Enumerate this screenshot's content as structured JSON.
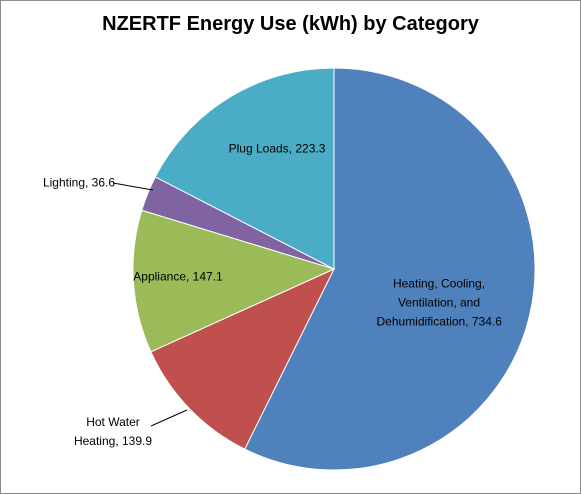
{
  "chart_data": {
    "type": "pie",
    "title": "NZERTF Energy Use (kWh) by Category",
    "categories": [
      "Heating, Cooling, Ventilation, and Dehumidification",
      "Hot Water Heating",
      "Appliance",
      "Lighting",
      "Plug Loads"
    ],
    "values": [
      734.6,
      139.9,
      147.1,
      36.6,
      223.3
    ],
    "value_labels": [
      ", 734.6",
      ", 139.9",
      ", 147.1",
      ", 36.6",
      ", 223.3"
    ],
    "colors": [
      "#4f81bd",
      "#c0504d",
      "#9bbb59",
      "#8064a2",
      "#4bacc6"
    ]
  }
}
